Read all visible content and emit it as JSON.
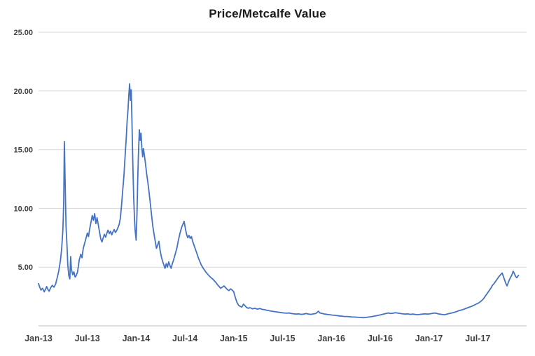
{
  "chart_data": {
    "type": "line",
    "title": "Price/Metcalfe Value",
    "xlabel": "",
    "ylabel": "",
    "xlim": [
      0,
      60
    ],
    "ylim": [
      0,
      25
    ],
    "grid": "horizontal",
    "legend_position": "none",
    "gridline_color": "#D9D9D9",
    "axis_line_color": "#BFBFBF",
    "axis_label_color": "#404040",
    "x_unit": "months since Jan-2013",
    "x_tick_months": [
      0,
      6,
      12,
      18,
      24,
      30,
      36,
      42,
      48,
      54
    ],
    "x_tick_labels": [
      "Jan-13",
      "Jul-13",
      "Jan-14",
      "Jul-14",
      "Jan-15",
      "Jul-15",
      "Jan-16",
      "Jul-16",
      "Jan-17",
      "Jul-17"
    ],
    "y_ticks": [
      5,
      10,
      15,
      20,
      25
    ],
    "y_tick_labels": [
      "5.00",
      "10.00",
      "15.00",
      "20.00",
      "25.00"
    ],
    "series": [
      {
        "name": "Price/Metcalfe Value",
        "color": "#4472C4",
        "points": [
          [
            0,
            3.6
          ],
          [
            0.15,
            3.3
          ],
          [
            0.3,
            3.05
          ],
          [
            0.5,
            3.2
          ],
          [
            0.7,
            2.9
          ],
          [
            0.85,
            3.1
          ],
          [
            1,
            3.35
          ],
          [
            1.15,
            3.1
          ],
          [
            1.3,
            2.95
          ],
          [
            1.5,
            3.25
          ],
          [
            1.7,
            3.45
          ],
          [
            1.9,
            3.3
          ],
          [
            2.1,
            3.55
          ],
          [
            2.3,
            4.1
          ],
          [
            2.5,
            4.7
          ],
          [
            2.7,
            5.6
          ],
          [
            2.85,
            6.6
          ],
          [
            3.0,
            8.2
          ],
          [
            3.1,
            10.5
          ],
          [
            3.18,
            15.7
          ],
          [
            3.28,
            12.0
          ],
          [
            3.38,
            8.5
          ],
          [
            3.5,
            6.8
          ],
          [
            3.6,
            5.2
          ],
          [
            3.72,
            4.3
          ],
          [
            3.85,
            4.0
          ],
          [
            3.95,
            5.9
          ],
          [
            4.05,
            4.8
          ],
          [
            4.2,
            4.35
          ],
          [
            4.35,
            4.6
          ],
          [
            4.5,
            4.15
          ],
          [
            4.65,
            4.3
          ],
          [
            4.8,
            4.6
          ],
          [
            5.0,
            5.6
          ],
          [
            5.2,
            6.1
          ],
          [
            5.35,
            5.8
          ],
          [
            5.5,
            6.6
          ],
          [
            5.7,
            7.1
          ],
          [
            5.85,
            7.5
          ],
          [
            6.0,
            7.9
          ],
          [
            6.15,
            7.6
          ],
          [
            6.3,
            8.3
          ],
          [
            6.45,
            8.8
          ],
          [
            6.6,
            9.4
          ],
          [
            6.75,
            9.0
          ],
          [
            6.9,
            9.55
          ],
          [
            7.05,
            8.7
          ],
          [
            7.2,
            9.2
          ],
          [
            7.35,
            8.6
          ],
          [
            7.5,
            8.0
          ],
          [
            7.65,
            7.4
          ],
          [
            7.8,
            7.15
          ],
          [
            7.95,
            7.5
          ],
          [
            8.1,
            7.8
          ],
          [
            8.25,
            7.55
          ],
          [
            8.4,
            7.9
          ],
          [
            8.55,
            8.15
          ],
          [
            8.7,
            7.85
          ],
          [
            8.85,
            8.05
          ],
          [
            9.0,
            7.75
          ],
          [
            9.15,
            8.0
          ],
          [
            9.3,
            8.2
          ],
          [
            9.45,
            7.95
          ],
          [
            9.6,
            8.1
          ],
          [
            9.75,
            8.35
          ],
          [
            9.9,
            8.6
          ],
          [
            10.05,
            9.1
          ],
          [
            10.2,
            10.2
          ],
          [
            10.35,
            11.5
          ],
          [
            10.5,
            12.8
          ],
          [
            10.65,
            14.5
          ],
          [
            10.8,
            16.2
          ],
          [
            10.9,
            17.5
          ],
          [
            11.0,
            18.4
          ],
          [
            11.1,
            19.6
          ],
          [
            11.2,
            20.6
          ],
          [
            11.3,
            19.2
          ],
          [
            11.4,
            20.1
          ],
          [
            11.5,
            17.0
          ],
          [
            11.6,
            13.5
          ],
          [
            11.7,
            11.0
          ],
          [
            11.8,
            9.0
          ],
          [
            11.9,
            8.0
          ],
          [
            12.0,
            7.3
          ],
          [
            12.1,
            9.5
          ],
          [
            12.2,
            12.5
          ],
          [
            12.3,
            15.0
          ],
          [
            12.4,
            16.7
          ],
          [
            12.5,
            15.8
          ],
          [
            12.6,
            16.4
          ],
          [
            12.7,
            15.2
          ],
          [
            12.8,
            14.4
          ],
          [
            12.9,
            15.1
          ],
          [
            13.0,
            14.6
          ],
          [
            13.15,
            13.8
          ],
          [
            13.3,
            12.9
          ],
          [
            13.45,
            12.2
          ],
          [
            13.6,
            11.3
          ],
          [
            13.75,
            10.4
          ],
          [
            13.9,
            9.4
          ],
          [
            14.05,
            8.5
          ],
          [
            14.2,
            7.8
          ],
          [
            14.35,
            7.2
          ],
          [
            14.5,
            6.6
          ],
          [
            14.65,
            6.9
          ],
          [
            14.8,
            7.2
          ],
          [
            14.95,
            6.4
          ],
          [
            15.1,
            5.9
          ],
          [
            15.25,
            5.5
          ],
          [
            15.4,
            5.2
          ],
          [
            15.55,
            4.9
          ],
          [
            15.7,
            5.3
          ],
          [
            15.85,
            5.0
          ],
          [
            16.0,
            5.45
          ],
          [
            16.15,
            5.15
          ],
          [
            16.3,
            4.9
          ],
          [
            16.45,
            5.3
          ],
          [
            16.6,
            5.6
          ],
          [
            16.8,
            6.1
          ],
          [
            17.0,
            6.6
          ],
          [
            17.2,
            7.3
          ],
          [
            17.4,
            7.9
          ],
          [
            17.6,
            8.4
          ],
          [
            17.75,
            8.65
          ],
          [
            17.9,
            8.9
          ],
          [
            18.05,
            8.3
          ],
          [
            18.2,
            7.8
          ],
          [
            18.35,
            7.5
          ],
          [
            18.5,
            7.7
          ],
          [
            18.65,
            7.45
          ],
          [
            18.8,
            7.6
          ],
          [
            18.95,
            7.2
          ],
          [
            19.1,
            6.9
          ],
          [
            19.25,
            6.6
          ],
          [
            19.4,
            6.3
          ],
          [
            19.55,
            6.0
          ],
          [
            19.7,
            5.7
          ],
          [
            19.85,
            5.45
          ],
          [
            20.0,
            5.2
          ],
          [
            20.2,
            4.95
          ],
          [
            20.4,
            4.75
          ],
          [
            20.6,
            4.55
          ],
          [
            20.8,
            4.4
          ],
          [
            21.0,
            4.25
          ],
          [
            21.2,
            4.1
          ],
          [
            21.4,
            4.0
          ],
          [
            21.6,
            3.85
          ],
          [
            21.8,
            3.7
          ],
          [
            22.0,
            3.5
          ],
          [
            22.2,
            3.35
          ],
          [
            22.4,
            3.2
          ],
          [
            22.6,
            3.3
          ],
          [
            22.8,
            3.4
          ],
          [
            23.0,
            3.25
          ],
          [
            23.2,
            3.1
          ],
          [
            23.4,
            3.0
          ],
          [
            23.6,
            3.15
          ],
          [
            23.8,
            3.05
          ],
          [
            24.0,
            2.9
          ],
          [
            24.2,
            2.4
          ],
          [
            24.4,
            2.0
          ],
          [
            24.6,
            1.75
          ],
          [
            24.8,
            1.65
          ],
          [
            25.0,
            1.6
          ],
          [
            25.2,
            1.85
          ],
          [
            25.4,
            1.7
          ],
          [
            25.6,
            1.55
          ],
          [
            25.8,
            1.5
          ],
          [
            26.0,
            1.55
          ],
          [
            26.3,
            1.45
          ],
          [
            26.6,
            1.5
          ],
          [
            26.9,
            1.42
          ],
          [
            27.2,
            1.48
          ],
          [
            27.5,
            1.4
          ],
          [
            27.8,
            1.38
          ],
          [
            28.1,
            1.32
          ],
          [
            28.4,
            1.28
          ],
          [
            28.7,
            1.25
          ],
          [
            29.0,
            1.22
          ],
          [
            29.3,
            1.18
          ],
          [
            29.6,
            1.15
          ],
          [
            29.9,
            1.12
          ],
          [
            30.2,
            1.1
          ],
          [
            30.5,
            1.08
          ],
          [
            30.8,
            1.1
          ],
          [
            31.1,
            1.05
          ],
          [
            31.4,
            1.02
          ],
          [
            31.7,
            1.0
          ],
          [
            32.0,
            1.02
          ],
          [
            32.3,
            0.98
          ],
          [
            32.6,
            1.0
          ],
          [
            32.9,
            1.05
          ],
          [
            33.2,
            1.0
          ],
          [
            33.5,
            0.98
          ],
          [
            33.8,
            1.02
          ],
          [
            34.1,
            1.05
          ],
          [
            34.4,
            1.25
          ],
          [
            34.6,
            1.1
          ],
          [
            34.9,
            1.05
          ],
          [
            35.2,
            1.0
          ],
          [
            35.5,
            0.97
          ],
          [
            35.8,
            0.95
          ],
          [
            36.1,
            0.92
          ],
          [
            36.4,
            0.9
          ],
          [
            36.7,
            0.87
          ],
          [
            37.0,
            0.85
          ],
          [
            37.3,
            0.83
          ],
          [
            37.6,
            0.8
          ],
          [
            37.9,
            0.8
          ],
          [
            38.2,
            0.78
          ],
          [
            38.5,
            0.76
          ],
          [
            38.8,
            0.75
          ],
          [
            39.1,
            0.74
          ],
          [
            39.4,
            0.72
          ],
          [
            39.7,
            0.71
          ],
          [
            40.0,
            0.7
          ],
          [
            40.3,
            0.72
          ],
          [
            40.6,
            0.75
          ],
          [
            40.9,
            0.78
          ],
          [
            41.2,
            0.82
          ],
          [
            41.5,
            0.86
          ],
          [
            41.8,
            0.9
          ],
          [
            42.1,
            0.95
          ],
          [
            42.4,
            1.0
          ],
          [
            42.7,
            1.05
          ],
          [
            43.0,
            1.1
          ],
          [
            43.3,
            1.05
          ],
          [
            43.6,
            1.08
          ],
          [
            43.9,
            1.12
          ],
          [
            44.2,
            1.08
          ],
          [
            44.5,
            1.05
          ],
          [
            44.8,
            1.02
          ],
          [
            45.1,
            1.0
          ],
          [
            45.4,
            1.02
          ],
          [
            45.7,
            0.98
          ],
          [
            46.0,
            1.0
          ],
          [
            46.3,
            0.97
          ],
          [
            46.6,
            0.95
          ],
          [
            46.9,
            0.98
          ],
          [
            47.2,
            1.0
          ],
          [
            47.5,
            1.02
          ],
          [
            47.8,
            1.0
          ],
          [
            48.1,
            1.02
          ],
          [
            48.4,
            1.06
          ],
          [
            48.7,
            1.1
          ],
          [
            49.0,
            1.05
          ],
          [
            49.3,
            1.0
          ],
          [
            49.6,
            0.97
          ],
          [
            49.9,
            0.95
          ],
          [
            50.2,
            1.0
          ],
          [
            50.5,
            1.05
          ],
          [
            50.8,
            1.1
          ],
          [
            51.1,
            1.15
          ],
          [
            51.4,
            1.22
          ],
          [
            51.7,
            1.3
          ],
          [
            52.0,
            1.35
          ],
          [
            52.3,
            1.42
          ],
          [
            52.6,
            1.5
          ],
          [
            52.9,
            1.58
          ],
          [
            53.2,
            1.65
          ],
          [
            53.5,
            1.75
          ],
          [
            53.8,
            1.85
          ],
          [
            54.1,
            1.95
          ],
          [
            54.4,
            2.1
          ],
          [
            54.7,
            2.3
          ],
          [
            55.0,
            2.6
          ],
          [
            55.2,
            2.8
          ],
          [
            55.4,
            3.0
          ],
          [
            55.6,
            3.2
          ],
          [
            55.8,
            3.45
          ],
          [
            56.0,
            3.6
          ],
          [
            56.2,
            3.8
          ],
          [
            56.4,
            4.0
          ],
          [
            56.6,
            4.2
          ],
          [
            56.8,
            4.35
          ],
          [
            57.0,
            4.5
          ],
          [
            57.15,
            4.2
          ],
          [
            57.3,
            3.9
          ],
          [
            57.45,
            3.6
          ],
          [
            57.6,
            3.4
          ],
          [
            57.75,
            3.7
          ],
          [
            57.9,
            3.95
          ],
          [
            58.05,
            4.15
          ],
          [
            58.2,
            4.35
          ],
          [
            58.35,
            4.65
          ],
          [
            58.5,
            4.45
          ],
          [
            58.65,
            4.2
          ],
          [
            58.8,
            4.1
          ],
          [
            59.0,
            4.3
          ]
        ]
      }
    ]
  }
}
